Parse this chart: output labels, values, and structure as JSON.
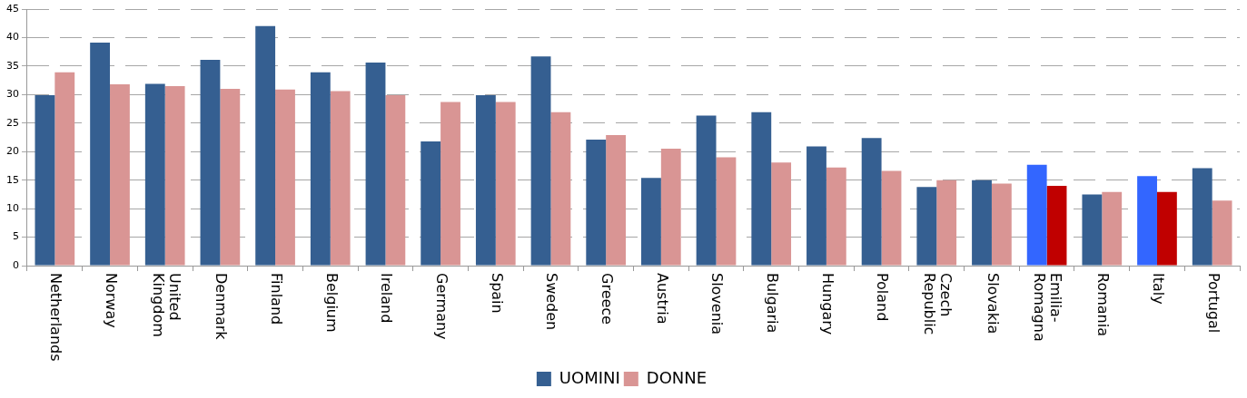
{
  "chart_data": {
    "type": "bar",
    "categories": [
      "Netherlands",
      "Norway",
      "United Kingdom",
      "Denmark",
      "Finland",
      "Belgium",
      "Ireland",
      "Germany",
      "Spain",
      "Sweden",
      "Greece",
      "Austria",
      "Slovenia",
      "Bulgaria",
      "Hungary",
      "Poland",
      "Czech Republic",
      "Slovakia",
      "Emilia-Romagna",
      "Romania",
      "Italy",
      "Portugal"
    ],
    "series": [
      {
        "name": "UOMINI",
        "color": "#355f91",
        "colors": [
          "#355f91",
          "#355f91",
          "#355f91",
          "#355f91",
          "#355f91",
          "#355f91",
          "#355f91",
          "#355f91",
          "#355f91",
          "#355f91",
          "#355f91",
          "#355f91",
          "#355f91",
          "#355f91",
          "#355f91",
          "#355f91",
          "#355f91",
          "#355f91",
          "#3366ff",
          "#355f91",
          "#3366ff",
          "#355f91"
        ],
        "values": [
          29.9,
          39.1,
          31.9,
          36.1,
          42.0,
          33.9,
          35.6,
          21.8,
          29.9,
          36.7,
          22.1,
          15.4,
          26.3,
          26.9,
          20.9,
          22.4,
          13.8,
          15.0,
          17.7,
          12.5,
          15.7,
          17.1
        ]
      },
      {
        "name": "DONNE",
        "color": "#d99594",
        "colors": [
          "#d99594",
          "#d99594",
          "#d99594",
          "#d99594",
          "#d99594",
          "#d99594",
          "#d99594",
          "#d99594",
          "#d99594",
          "#d99594",
          "#d99594",
          "#d99594",
          "#d99594",
          "#d99594",
          "#d99594",
          "#d99594",
          "#d99594",
          "#d99594",
          "#c00000",
          "#d99594",
          "#c00000",
          "#d99594"
        ],
        "values": [
          33.9,
          31.8,
          31.5,
          31.0,
          30.9,
          30.6,
          29.9,
          28.7,
          28.7,
          26.9,
          22.9,
          20.5,
          19.0,
          18.1,
          17.2,
          16.6,
          15.0,
          14.4,
          14.0,
          12.9,
          12.9,
          11.4
        ]
      }
    ],
    "ylim": [
      0,
      45
    ],
    "yticks": [
      0,
      5,
      10,
      15,
      20,
      25,
      30,
      35,
      40,
      45
    ],
    "grid": "y",
    "legend": "bottom"
  }
}
